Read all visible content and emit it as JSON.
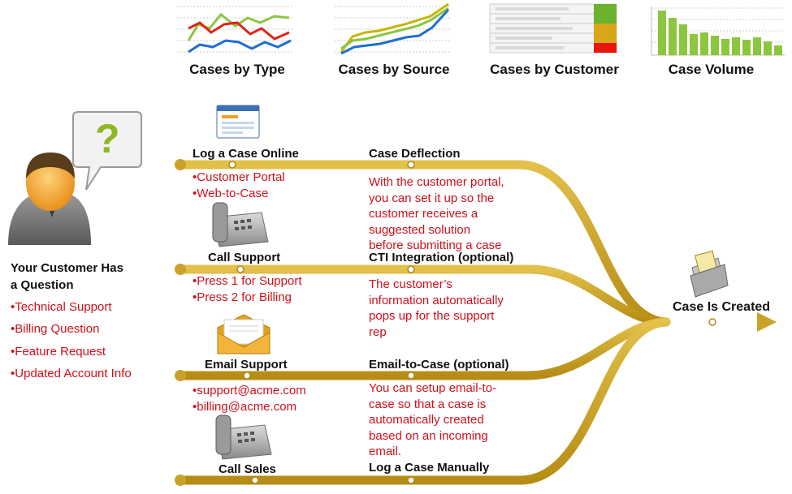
{
  "thumbnails": [
    {
      "id": "type",
      "label": "Cases by Type"
    },
    {
      "id": "source",
      "label": "Cases by Source"
    },
    {
      "id": "customer",
      "label": "Cases by Customer"
    },
    {
      "id": "volume",
      "label": "Case Volume"
    }
  ],
  "customer": {
    "title_line1": "Your Customer Has",
    "title_line2": "a Question",
    "speech_symbol": "?",
    "items": [
      "Technical Support",
      "Billing Question",
      "Feature Request",
      "Updated Account Info"
    ]
  },
  "channels": [
    {
      "name": "Log a Case Online",
      "bullets": [
        "Customer Portal",
        "Web-to-Case"
      ],
      "feature": "Case Deflection",
      "desc": [
        "With the customer portal,",
        "you can set it up so the",
        "customer receives a",
        "suggested solution",
        "before submitting a case"
      ],
      "icon": "web-form-icon"
    },
    {
      "name": "Call Support",
      "bullets": [
        "Press 1 for Support",
        "Press 2 for Billing"
      ],
      "feature": "CTI Integration  (optional)",
      "desc": [
        "The customer’s",
        "information automatically",
        "pops up for the support",
        "rep"
      ],
      "icon": "phone-icon"
    },
    {
      "name": "Email Support",
      "bullets": [
        "support@acme.com",
        "billing@acme.com"
      ],
      "feature": "Email-to-Case (optional)",
      "desc": [
        "You can setup email-to-",
        "case so that a case is",
        "automatically created",
        "based on an incoming",
        "email."
      ],
      "icon": "envelope-icon"
    },
    {
      "name": "Call Sales",
      "bullets": [],
      "feature": "Log a Case Manually",
      "desc": [],
      "icon": "phone-icon"
    }
  ],
  "result": {
    "label": "Case Is Created",
    "icon": "case-file-icon"
  },
  "colors": {
    "track": "#c9a227",
    "track_dark": "#b08a16",
    "accent_red": "#d0101a",
    "question_green": "#8cb820"
  }
}
